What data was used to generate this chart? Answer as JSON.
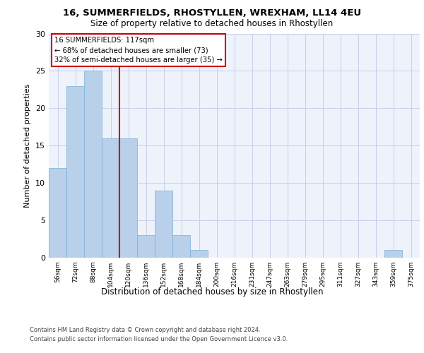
{
  "title1": "16, SUMMERFIELDS, RHOSTYLLEN, WREXHAM, LL14 4EU",
  "title2": "Size of property relative to detached houses in Rhostyllen",
  "xlabel": "Distribution of detached houses by size in Rhostyllen",
  "ylabel": "Number of detached properties",
  "categories": [
    "56sqm",
    "72sqm",
    "88sqm",
    "104sqm",
    "120sqm",
    "136sqm",
    "152sqm",
    "168sqm",
    "184sqm",
    "200sqm",
    "216sqm",
    "231sqm",
    "247sqm",
    "263sqm",
    "279sqm",
    "295sqm",
    "311sqm",
    "327sqm",
    "343sqm",
    "359sqm",
    "375sqm"
  ],
  "values": [
    12,
    23,
    25,
    16,
    16,
    3,
    9,
    3,
    1,
    0,
    0,
    0,
    0,
    0,
    0,
    0,
    0,
    0,
    0,
    1,
    0
  ],
  "bar_color": "#b8d0ea",
  "bar_edge_color": "#7aafd4",
  "annotation_text_line1": "16 SUMMERFIELDS: 117sqm",
  "annotation_text_line2": "← 68% of detached houses are smaller (73)",
  "annotation_text_line3": "32% of semi-detached houses are larger (35) →",
  "ylim": [
    0,
    30
  ],
  "yticks": [
    0,
    5,
    10,
    15,
    20,
    25,
    30
  ],
  "footer_line1": "Contains HM Land Registry data © Crown copyright and database right 2024.",
  "footer_line2": "Contains public sector information licensed under the Open Government Licence v3.0.",
  "background_color": "#eef2fb",
  "grid_color": "#c8cfe8",
  "red_line_color": "#cc0000",
  "box_edge_color": "#cc0000",
  "red_line_index": 3.5
}
